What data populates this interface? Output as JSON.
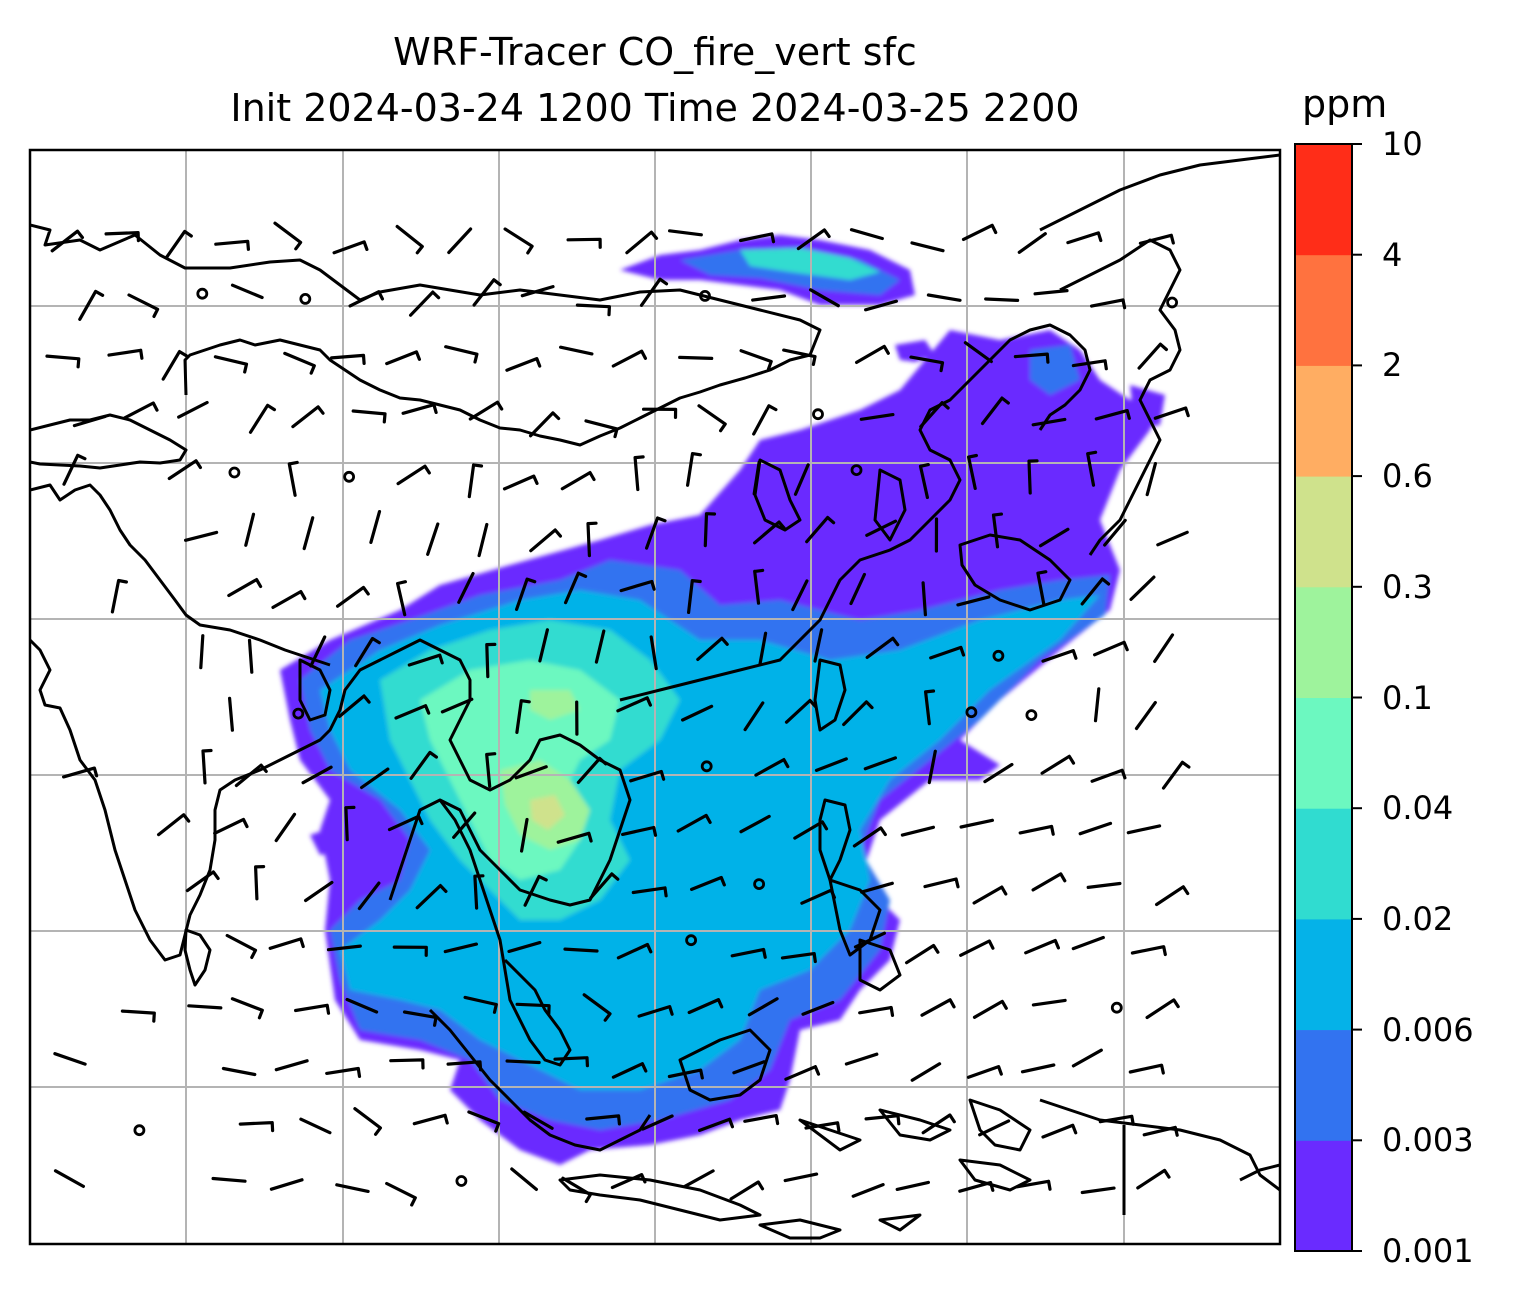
{
  "title": {
    "line1": "WRF-Tracer CO_fire_vert sfc",
    "line2": "Init 2024-03-24 1200 Time 2024-03-25 2200"
  },
  "colorbar": {
    "unit": "ppm",
    "levels": [
      "0.001",
      "0.003",
      "0.006",
      "0.02",
      "0.04",
      "0.1",
      "0.3",
      "0.6",
      "2",
      "4",
      "10"
    ],
    "colors": [
      "#6a2bff",
      "#3273f0",
      "#05b2e8",
      "#30dcd0",
      "#6cf8c0",
      "#9ef39c",
      "#cfe28c",
      "#ffad62",
      "#ff723f",
      "#ff2d18"
    ]
  },
  "map": {
    "gridlines": true,
    "coastline_color": "#000000",
    "grid_color": "#b4b4b4",
    "overlay": "wind barbs",
    "field": "CO_fire_vert surface concentration"
  }
}
